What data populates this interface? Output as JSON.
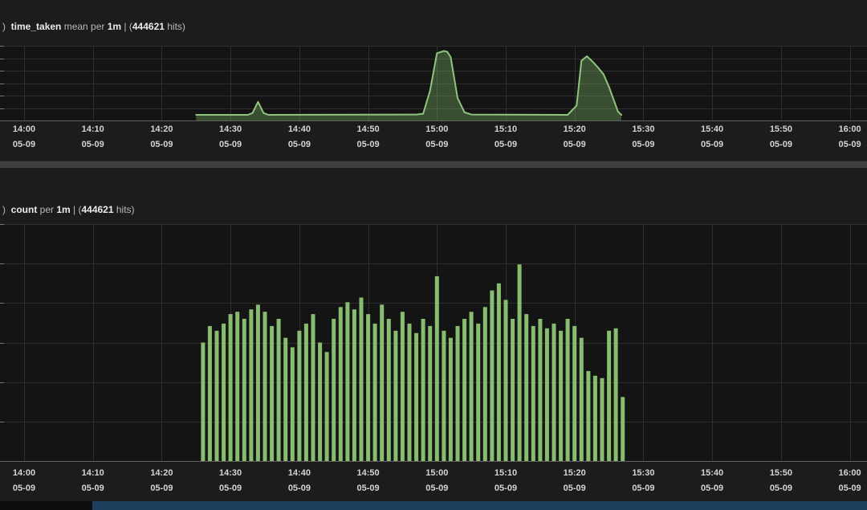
{
  "panels": [
    {
      "name": "time-taken-graph",
      "title_text": ") time_taken mean per 1m | (444621 hits)",
      "title_segments": [
        {
          "text": ")  ",
          "bold": false
        },
        {
          "text": "time_taken",
          "bold": true
        },
        {
          "text": " mean per ",
          "bold": false
        },
        {
          "text": "1m",
          "bold": true
        },
        {
          "text": " | (",
          "bold": false
        },
        {
          "text": "444621",
          "bold": true
        },
        {
          "text": " hits)",
          "bold": false
        }
      ],
      "hits": 444621
    },
    {
      "name": "count-graph",
      "title_text": ") count per 1m | (444621 hits)",
      "title_segments": [
        {
          "text": ")  ",
          "bold": false
        },
        {
          "text": "count",
          "bold": true
        },
        {
          "text": " per ",
          "bold": false
        },
        {
          "text": "1m",
          "bold": true
        },
        {
          "text": " | (",
          "bold": false
        },
        {
          "text": "444621",
          "bold": true
        },
        {
          "text": " hits)",
          "bold": false
        }
      ],
      "hits": 444621
    }
  ],
  "x_axis": {
    "tick_minutes": [
      0,
      10,
      20,
      30,
      40,
      50,
      60,
      70,
      80,
      90,
      100,
      110,
      120
    ],
    "ticks": [
      {
        "time": "14:00",
        "date": "05-09"
      },
      {
        "time": "14:10",
        "date": "05-09"
      },
      {
        "time": "14:20",
        "date": "05-09"
      },
      {
        "time": "14:30",
        "date": "05-09"
      },
      {
        "time": "14:40",
        "date": "05-09"
      },
      {
        "time": "14:50",
        "date": "05-09"
      },
      {
        "time": "15:00",
        "date": "05-09"
      },
      {
        "time": "15:10",
        "date": "05-09"
      },
      {
        "time": "15:20",
        "date": "05-09"
      },
      {
        "time": "15:30",
        "date": "05-09"
      },
      {
        "time": "15:40",
        "date": "05-09"
      },
      {
        "time": "15:50",
        "date": "05-09"
      },
      {
        "time": "16:00",
        "date": "05-09"
      }
    ]
  },
  "colors": {
    "background": "#1c1c1c",
    "plot_background": "#141414",
    "grid": "#2e2e2e",
    "axis": "#606060",
    "tick_stub": "#777777",
    "series_green": "#8fc57d",
    "area_fill": "rgba(130,185,105,0.35)",
    "bar_green": "#88bd70",
    "label": "#d4d4d4",
    "divider": "#3e3e3e",
    "scrollbar_blue": "#1d3f5e"
  },
  "chart_data": [
    {
      "type": "area",
      "title": "time_taken mean per 1m",
      "legend": "none",
      "grid": true,
      "grid_rows": 6,
      "x_unit": "minutes after 14:00 on 05-09",
      "x_domain": [
        -3.5,
        122.5
      ],
      "ylim": [
        0,
        100
      ],
      "x": [
        25,
        32.5,
        33.2,
        34,
        34.8,
        35.5,
        57,
        58,
        59,
        60,
        61,
        61.5,
        62,
        63,
        64,
        65,
        79,
        80.3,
        81,
        81.8,
        82.5,
        83.3,
        84.2,
        85,
        85.8,
        86.3,
        86.8
      ],
      "y": [
        7.5,
        7.5,
        10,
        25,
        10,
        7.5,
        8,
        9,
        40,
        90,
        93,
        92,
        85,
        30,
        11,
        8,
        7.5,
        20,
        80,
        86,
        80,
        72,
        62,
        45,
        25,
        12,
        7.5
      ],
      "annotations": [
        "baseline flat ~7.5 from 14:25",
        "small spike at 14:34",
        "large spike peaking 15:00-15:02",
        "large spike peaking 15:21 with gradual decay",
        "series ends ~15:27"
      ]
    },
    {
      "type": "bar",
      "title": "count per 1m",
      "legend": "none",
      "grid": true,
      "grid_rows": 6,
      "x_unit": "minutes after 14:00 on 05-09",
      "x_domain": [
        -3.5,
        122.5
      ],
      "ylim": [
        0,
        100
      ],
      "x_start": 26,
      "x_step": 1,
      "values": [
        50,
        57,
        55,
        58,
        62,
        63,
        60,
        64,
        66,
        63,
        57,
        60,
        52,
        48,
        55,
        58,
        62,
        50,
        46,
        60,
        65,
        67,
        64,
        69,
        62,
        58,
        66,
        60,
        55,
        63,
        58,
        54,
        60,
        57,
        78,
        55,
        52,
        57,
        60,
        63,
        58,
        65,
        72,
        75,
        68,
        60,
        83,
        62,
        57,
        60,
        56,
        58,
        55,
        60,
        57,
        52,
        38,
        36,
        35,
        55,
        56,
        27
      ],
      "annotations": [
        "one bar per minute from 14:26 to 15:27",
        "tallest bar ~15:12",
        "tall bar at 15:00",
        "dip 15:22-15:24",
        "short final bar 15:27"
      ]
    }
  ]
}
